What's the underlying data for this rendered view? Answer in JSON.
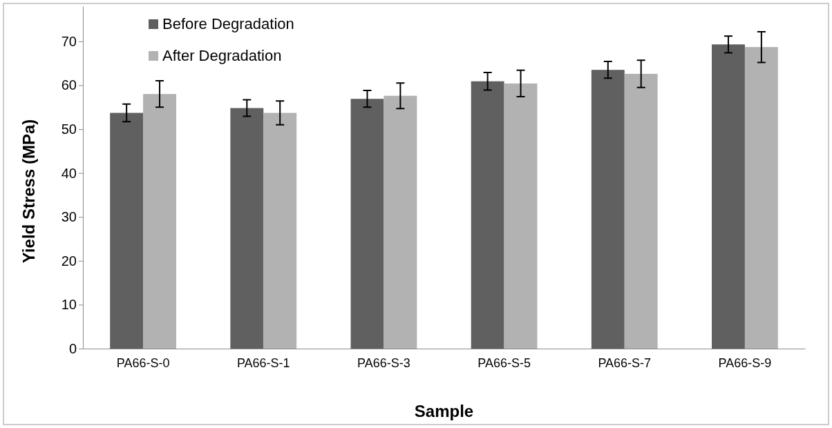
{
  "chart_data": {
    "type": "bar",
    "xlabel": "Sample",
    "ylabel": "Yield Stress (MPa)",
    "categories": [
      "PA66-S-0",
      "PA66-S-1",
      "PA66-S-3",
      "PA66-S-5",
      "PA66-S-7",
      "PA66-S-9"
    ],
    "series": [
      {
        "name": "Before Degradation",
        "color": "#606060",
        "values": [
          53.7,
          54.8,
          56.9,
          60.9,
          63.5,
          69.3
        ],
        "errors": [
          2,
          1.9,
          1.9,
          2,
          1.9,
          1.9
        ]
      },
      {
        "name": "After Degradation",
        "color": "#b2b2b2",
        "values": [
          58.0,
          53.7,
          57.6,
          60.4,
          62.6,
          68.7
        ],
        "errors": [
          3,
          2.7,
          2.9,
          3,
          3.1,
          3.5
        ]
      }
    ],
    "ylim": [
      0,
      78
    ],
    "yticks": [
      0,
      10,
      20,
      30,
      40,
      50,
      60,
      70
    ],
    "grid": false,
    "legend": "top left"
  }
}
